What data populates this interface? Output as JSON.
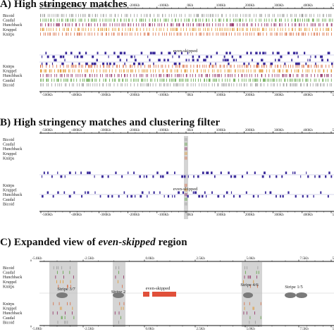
{
  "colors": {
    "Bicoid": "#9a9a9a",
    "Caudal": "#5aa040",
    "Hunchback": "#8e2a60",
    "Kruppel": "#e0962e",
    "Knirps": "#d86a40",
    "genes": "#3a2a9a",
    "eve": "#e0503a",
    "stripe": "#7a7a7a",
    "shade": "#d4d4d4"
  },
  "panels": [
    {
      "title_prefix": "A) ",
      "title": "High stringency matches",
      "top_labels": [
        "Bicoid",
        "Caudal",
        "Hunchback",
        "Kruppel",
        "Knirps"
      ],
      "bottom_labels": [
        "Knirps",
        "Kruppel",
        "Hunchback",
        "Caudal",
        "Bicoid"
      ],
      "ticks": [
        "-500Kb",
        "-400Kb",
        "-300Kb",
        "-200Kb",
        "-100Kb",
        "0Kb",
        "100Kb",
        "200Kb",
        "300Kb",
        "400Kb",
        "500Kb"
      ],
      "gene_label": "even-skipped"
    },
    {
      "title_prefix": "B) ",
      "title": "High stringency matches and clustering filter",
      "top_labels": [
        "Bicoid",
        "Caudal",
        "Hunchback",
        "Kruppel",
        "Knirps"
      ],
      "bottom_labels": [
        "Knirps",
        "Kruppel",
        "Hunchback",
        "Caudal",
        "Bicoid"
      ],
      "ticks": [
        "-500Kb",
        "-400Kb",
        "-300Kb",
        "-200Kb",
        "-100Kb",
        "0Kb",
        "100Kb",
        "200Kb",
        "300Kb",
        "400Kb",
        "500Kb"
      ],
      "gene_label": "even-skipped"
    },
    {
      "title_prefix": "C) ",
      "title": "Expanded view of ",
      "title_em": "even-skipped",
      "title_suffix": " region",
      "top_labels": [
        "Bicoid",
        "Caudal",
        "Hunchback",
        "Kruppel",
        "Knirps"
      ],
      "bottom_labels": [
        "Knirps",
        "Kruppel",
        "Hunchback",
        "Caudal",
        "Bicoid"
      ],
      "ticks": [
        "-5.0Kb",
        "-2.5Kb",
        "0.0Kb",
        "2.5Kb",
        "5.0Kb",
        "7.5Kb",
        "5"
      ],
      "gene_label": "even-skipped",
      "stripes": [
        "Stripe 3/7",
        "Stripe 2",
        "Stripe 4/6",
        "Stripe 1/5"
      ]
    }
  ]
}
